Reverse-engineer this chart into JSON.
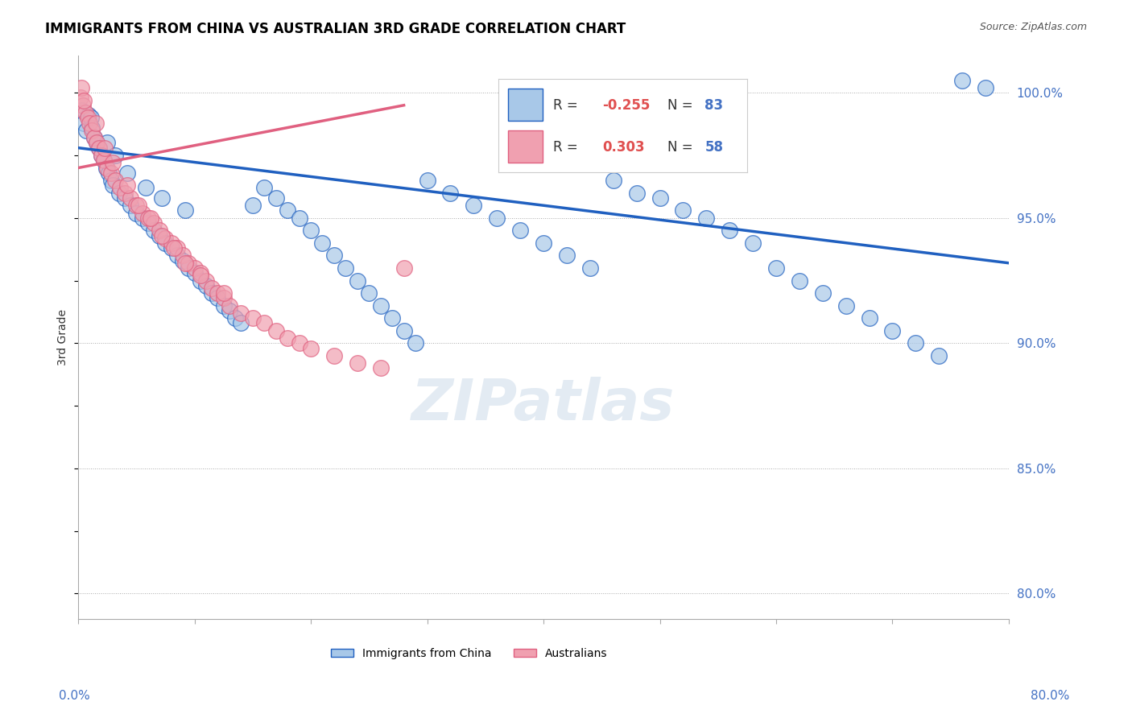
{
  "title": "IMMIGRANTS FROM CHINA VS AUSTRALIAN 3RD GRADE CORRELATION CHART",
  "source": "Source: ZipAtlas.com",
  "ylabel": "3rd Grade",
  "y_ticks": [
    80.0,
    85.0,
    90.0,
    95.0,
    100.0
  ],
  "x_range": [
    0.0,
    80.0
  ],
  "y_range": [
    79.0,
    101.5
  ],
  "legend_r_blue": "-0.255",
  "legend_n_blue": "83",
  "legend_r_pink": "0.303",
  "legend_n_pink": "58",
  "watermark": "ZIPatlas",
  "blue_color": "#a8c8e8",
  "blue_line_color": "#2060c0",
  "pink_color": "#f0a0b0",
  "pink_line_color": "#e06080",
  "blue_scatter": [
    [
      0.3,
      99.3
    ],
    [
      0.5,
      98.8
    ],
    [
      0.7,
      98.5
    ],
    [
      0.9,
      99.1
    ],
    [
      1.1,
      99.0
    ],
    [
      1.2,
      98.6
    ],
    [
      1.4,
      98.2
    ],
    [
      1.6,
      98.0
    ],
    [
      1.8,
      97.8
    ],
    [
      2.0,
      97.5
    ],
    [
      2.2,
      97.3
    ],
    [
      2.4,
      97.0
    ],
    [
      2.6,
      96.8
    ],
    [
      2.8,
      96.5
    ],
    [
      3.0,
      96.3
    ],
    [
      3.5,
      96.0
    ],
    [
      4.0,
      95.8
    ],
    [
      4.5,
      95.5
    ],
    [
      5.0,
      95.2
    ],
    [
      5.5,
      95.0
    ],
    [
      6.0,
      94.8
    ],
    [
      6.5,
      94.5
    ],
    [
      7.0,
      94.3
    ],
    [
      7.5,
      94.0
    ],
    [
      8.0,
      93.8
    ],
    [
      8.5,
      93.5
    ],
    [
      9.0,
      93.3
    ],
    [
      9.5,
      93.0
    ],
    [
      10.0,
      92.8
    ],
    [
      10.5,
      92.5
    ],
    [
      11.0,
      92.3
    ],
    [
      11.5,
      92.0
    ],
    [
      12.0,
      91.8
    ],
    [
      12.5,
      91.5
    ],
    [
      13.0,
      91.3
    ],
    [
      13.5,
      91.0
    ],
    [
      14.0,
      90.8
    ],
    [
      15.0,
      95.5
    ],
    [
      16.0,
      96.2
    ],
    [
      17.0,
      95.8
    ],
    [
      18.0,
      95.3
    ],
    [
      19.0,
      95.0
    ],
    [
      20.0,
      94.5
    ],
    [
      21.0,
      94.0
    ],
    [
      22.0,
      93.5
    ],
    [
      23.0,
      93.0
    ],
    [
      24.0,
      92.5
    ],
    [
      25.0,
      92.0
    ],
    [
      26.0,
      91.5
    ],
    [
      27.0,
      91.0
    ],
    [
      28.0,
      90.5
    ],
    [
      29.0,
      90.0
    ],
    [
      30.0,
      96.5
    ],
    [
      32.0,
      96.0
    ],
    [
      34.0,
      95.5
    ],
    [
      36.0,
      95.0
    ],
    [
      38.0,
      94.5
    ],
    [
      40.0,
      94.0
    ],
    [
      42.0,
      93.5
    ],
    [
      44.0,
      93.0
    ],
    [
      46.0,
      96.5
    ],
    [
      48.0,
      96.0
    ],
    [
      50.0,
      95.8
    ],
    [
      52.0,
      95.3
    ],
    [
      54.0,
      95.0
    ],
    [
      56.0,
      94.5
    ],
    [
      58.0,
      94.0
    ],
    [
      60.0,
      93.0
    ],
    [
      62.0,
      92.5
    ],
    [
      64.0,
      92.0
    ],
    [
      66.0,
      91.5
    ],
    [
      68.0,
      91.0
    ],
    [
      70.0,
      90.5
    ],
    [
      72.0,
      90.0
    ],
    [
      74.0,
      89.5
    ],
    [
      76.0,
      100.5
    ],
    [
      78.0,
      100.2
    ],
    [
      2.5,
      98.0
    ],
    [
      3.2,
      97.5
    ],
    [
      4.2,
      96.8
    ],
    [
      5.8,
      96.2
    ],
    [
      7.2,
      95.8
    ],
    [
      9.2,
      95.3
    ]
  ],
  "pink_scatter": [
    [
      0.2,
      99.8
    ],
    [
      0.4,
      99.5
    ],
    [
      0.6,
      99.2
    ],
    [
      0.8,
      99.0
    ],
    [
      1.0,
      98.8
    ],
    [
      1.2,
      98.5
    ],
    [
      1.4,
      98.2
    ],
    [
      1.6,
      98.0
    ],
    [
      1.8,
      97.8
    ],
    [
      2.0,
      97.5
    ],
    [
      2.2,
      97.3
    ],
    [
      2.5,
      97.0
    ],
    [
      2.8,
      96.8
    ],
    [
      3.2,
      96.5
    ],
    [
      3.6,
      96.2
    ],
    [
      4.0,
      96.0
    ],
    [
      4.5,
      95.8
    ],
    [
      5.0,
      95.5
    ],
    [
      5.5,
      95.2
    ],
    [
      6.0,
      95.0
    ],
    [
      6.5,
      94.8
    ],
    [
      7.0,
      94.5
    ],
    [
      7.5,
      94.2
    ],
    [
      8.0,
      94.0
    ],
    [
      8.5,
      93.8
    ],
    [
      9.0,
      93.5
    ],
    [
      9.5,
      93.2
    ],
    [
      10.0,
      93.0
    ],
    [
      10.5,
      92.8
    ],
    [
      11.0,
      92.5
    ],
    [
      11.5,
      92.2
    ],
    [
      12.0,
      92.0
    ],
    [
      12.5,
      91.8
    ],
    [
      13.0,
      91.5
    ],
    [
      14.0,
      91.2
    ],
    [
      15.0,
      91.0
    ],
    [
      16.0,
      90.8
    ],
    [
      17.0,
      90.5
    ],
    [
      18.0,
      90.2
    ],
    [
      19.0,
      90.0
    ],
    [
      20.0,
      89.8
    ],
    [
      22.0,
      89.5
    ],
    [
      24.0,
      89.2
    ],
    [
      26.0,
      89.0
    ],
    [
      28.0,
      93.0
    ],
    [
      0.3,
      100.2
    ],
    [
      0.5,
      99.7
    ],
    [
      1.5,
      98.8
    ],
    [
      2.3,
      97.8
    ],
    [
      3.0,
      97.2
    ],
    [
      4.2,
      96.3
    ],
    [
      5.2,
      95.5
    ],
    [
      6.2,
      95.0
    ],
    [
      7.2,
      94.3
    ],
    [
      8.2,
      93.8
    ],
    [
      9.2,
      93.2
    ],
    [
      10.5,
      92.7
    ],
    [
      12.5,
      92.0
    ]
  ],
  "blue_trend_x": [
    0.0,
    80.0
  ],
  "blue_trend_y": [
    97.8,
    93.2
  ],
  "pink_trend_x": [
    0.0,
    28.0
  ],
  "pink_trend_y": [
    97.0,
    99.5
  ]
}
